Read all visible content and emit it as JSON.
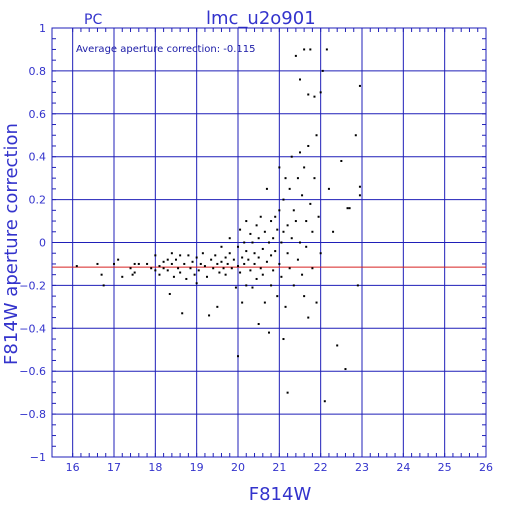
{
  "header": {
    "left_label": "PC",
    "title": "lmc_u2o901"
  },
  "annotation": "Average aperture correction: -0.115",
  "colors": {
    "axis": "#3333cc",
    "grid": "#1f1fb8",
    "points": "#000000",
    "average_line": "#d62020"
  },
  "chart_data": {
    "type": "scatter",
    "xlabel": "F814W",
    "ylabel": "F814W aperture correction",
    "xlim": [
      15.5,
      26
    ],
    "ylim": [
      -1,
      1
    ],
    "x_ticks": [
      16,
      17,
      18,
      19,
      20,
      21,
      22,
      23,
      24,
      25,
      26
    ],
    "y_ticks": [
      -1,
      -0.8,
      -0.6,
      -0.4,
      -0.2,
      0,
      0.2,
      0.4,
      0.6,
      0.8,
      1
    ],
    "x_tick_labels": [
      "16",
      "17",
      "18",
      "19",
      "20",
      "21",
      "22",
      "23",
      "24",
      "25",
      "26"
    ],
    "y_tick_labels": [
      "−1",
      "−0.8",
      "−0.6",
      "−0.4",
      "−0.2",
      "0",
      "0.2",
      "0.4",
      "0.6",
      "0.8",
      "1"
    ],
    "grid": true,
    "average_correction": -0.115,
    "points": [
      [
        16.1,
        -0.11
      ],
      [
        16.6,
        -0.1
      ],
      [
        16.7,
        -0.15
      ],
      [
        16.75,
        -0.2
      ],
      [
        17.0,
        -0.1
      ],
      [
        17.1,
        -0.08
      ],
      [
        17.2,
        -0.16
      ],
      [
        17.4,
        -0.12
      ],
      [
        17.45,
        -0.15
      ],
      [
        17.5,
        -0.1
      ],
      [
        17.5,
        -0.14
      ],
      [
        17.6,
        -0.1
      ],
      [
        17.8,
        -0.1
      ],
      [
        17.9,
        -0.12
      ],
      [
        18.0,
        -0.06
      ],
      [
        18.0,
        -0.13
      ],
      [
        18.1,
        -0.11
      ],
      [
        18.1,
        -0.15
      ],
      [
        18.2,
        -0.09
      ],
      [
        18.2,
        -0.12
      ],
      [
        18.3,
        -0.08
      ],
      [
        18.3,
        -0.13
      ],
      [
        18.35,
        -0.24
      ],
      [
        18.4,
        -0.05
      ],
      [
        18.4,
        -0.1
      ],
      [
        18.45,
        -0.16
      ],
      [
        18.5,
        -0.08
      ],
      [
        18.55,
        -0.12
      ],
      [
        18.6,
        -0.06
      ],
      [
        18.6,
        -0.14
      ],
      [
        18.65,
        -0.33
      ],
      [
        18.7,
        -0.1
      ],
      [
        18.75,
        -0.17
      ],
      [
        18.8,
        -0.06
      ],
      [
        18.85,
        -0.12
      ],
      [
        18.9,
        -0.09
      ],
      [
        18.95,
        -0.15
      ],
      [
        19.0,
        -0.19
      ],
      [
        19.0,
        -0.07
      ],
      [
        19.05,
        -0.13
      ],
      [
        19.1,
        -0.1
      ],
      [
        19.15,
        -0.05
      ],
      [
        19.2,
        -0.11
      ],
      [
        19.25,
        -0.16
      ],
      [
        19.3,
        -0.34
      ],
      [
        19.35,
        -0.08
      ],
      [
        19.4,
        -0.12
      ],
      [
        19.45,
        -0.06
      ],
      [
        19.5,
        -0.1
      ],
      [
        19.5,
        -0.3
      ],
      [
        19.55,
        -0.14
      ],
      [
        19.6,
        -0.09
      ],
      [
        19.6,
        -0.02
      ],
      [
        19.65,
        -0.12
      ],
      [
        19.7,
        -0.07
      ],
      [
        19.7,
        -0.15
      ],
      [
        19.75,
        -0.1
      ],
      [
        19.8,
        0.02
      ],
      [
        19.8,
        -0.05
      ],
      [
        19.85,
        -0.12
      ],
      [
        19.9,
        -0.08
      ],
      [
        19.95,
        -0.21
      ],
      [
        20.0,
        -0.53
      ],
      [
        20.0,
        -0.02
      ],
      [
        20.0,
        -0.11
      ],
      [
        20.05,
        0.06
      ],
      [
        20.05,
        -0.14
      ],
      [
        20.1,
        -0.07
      ],
      [
        20.1,
        -0.28
      ],
      [
        20.15,
        0.0
      ],
      [
        20.15,
        -0.1
      ],
      [
        20.2,
        0.1
      ],
      [
        20.2,
        -0.04
      ],
      [
        20.2,
        -0.2
      ],
      [
        20.25,
        -0.08
      ],
      [
        20.3,
        0.04
      ],
      [
        20.3,
        -0.13
      ],
      [
        20.35,
        0.0
      ],
      [
        20.35,
        -0.21
      ],
      [
        20.4,
        -0.05
      ],
      [
        20.4,
        -0.1
      ],
      [
        20.45,
        0.08
      ],
      [
        20.45,
        -0.17
      ],
      [
        20.5,
        0.02
      ],
      [
        20.5,
        -0.07
      ],
      [
        20.5,
        -0.38
      ],
      [
        20.55,
        -0.12
      ],
      [
        20.55,
        0.12
      ],
      [
        20.6,
        -0.03
      ],
      [
        20.6,
        -0.15
      ],
      [
        20.65,
        0.05
      ],
      [
        20.65,
        -0.28
      ],
      [
        20.7,
        0.25
      ],
      [
        20.7,
        -0.09
      ],
      [
        20.75,
        0.0
      ],
      [
        20.75,
        -0.42
      ],
      [
        20.8,
        0.1
      ],
      [
        20.8,
        -0.06
      ],
      [
        20.8,
        -0.2
      ],
      [
        20.85,
        0.02
      ],
      [
        20.85,
        -0.13
      ],
      [
        20.9,
        0.12
      ],
      [
        20.9,
        -0.04
      ],
      [
        20.95,
        0.06
      ],
      [
        20.95,
        -0.25
      ],
      [
        21.0,
        0.35
      ],
      [
        21.0,
        -0.1
      ],
      [
        21.0,
        0.15
      ],
      [
        21.05,
        0.0
      ],
      [
        21.05,
        -0.16
      ],
      [
        21.1,
        0.2
      ],
      [
        21.1,
        0.05
      ],
      [
        21.1,
        -0.45
      ],
      [
        21.15,
        -0.3
      ],
      [
        21.15,
        0.3
      ],
      [
        21.2,
        -0.05
      ],
      [
        21.2,
        0.08
      ],
      [
        21.2,
        -0.7
      ],
      [
        21.25,
        -0.12
      ],
      [
        21.25,
        0.25
      ],
      [
        21.3,
        0.4
      ],
      [
        21.3,
        0.02
      ],
      [
        21.35,
        -0.2
      ],
      [
        21.35,
        0.15
      ],
      [
        21.4,
        0.87
      ],
      [
        21.4,
        0.1
      ],
      [
        21.45,
        -0.08
      ],
      [
        21.45,
        0.3
      ],
      [
        21.5,
        0.76
      ],
      [
        21.5,
        0.42
      ],
      [
        21.5,
        0.0
      ],
      [
        21.55,
        -0.15
      ],
      [
        21.55,
        0.22
      ],
      [
        21.6,
        0.9
      ],
      [
        21.6,
        0.35
      ],
      [
        21.6,
        -0.25
      ],
      [
        21.65,
        0.1
      ],
      [
        21.65,
        -0.02
      ],
      [
        21.7,
        0.69
      ],
      [
        21.7,
        0.45
      ],
      [
        21.7,
        -0.35
      ],
      [
        21.75,
        0.18
      ],
      [
        21.75,
        0.9
      ],
      [
        21.8,
        0.05
      ],
      [
        21.8,
        -0.12
      ],
      [
        21.85,
        0.68
      ],
      [
        21.85,
        0.3
      ],
      [
        21.9,
        -0.28
      ],
      [
        21.9,
        0.5
      ],
      [
        21.95,
        0.12
      ],
      [
        22.0,
        0.7
      ],
      [
        22.0,
        -0.05
      ],
      [
        22.05,
        0.8
      ],
      [
        22.1,
        -0.74
      ],
      [
        22.15,
        0.9
      ],
      [
        22.2,
        0.25
      ],
      [
        22.3,
        0.05
      ],
      [
        22.4,
        -0.48
      ],
      [
        22.5,
        0.38
      ],
      [
        22.6,
        -0.59
      ],
      [
        22.65,
        0.16
      ],
      [
        22.7,
        0.16
      ],
      [
        22.85,
        0.5
      ],
      [
        22.9,
        -0.2
      ],
      [
        22.95,
        0.22
      ],
      [
        22.95,
        0.26
      ],
      [
        22.95,
        0.73
      ]
    ]
  }
}
